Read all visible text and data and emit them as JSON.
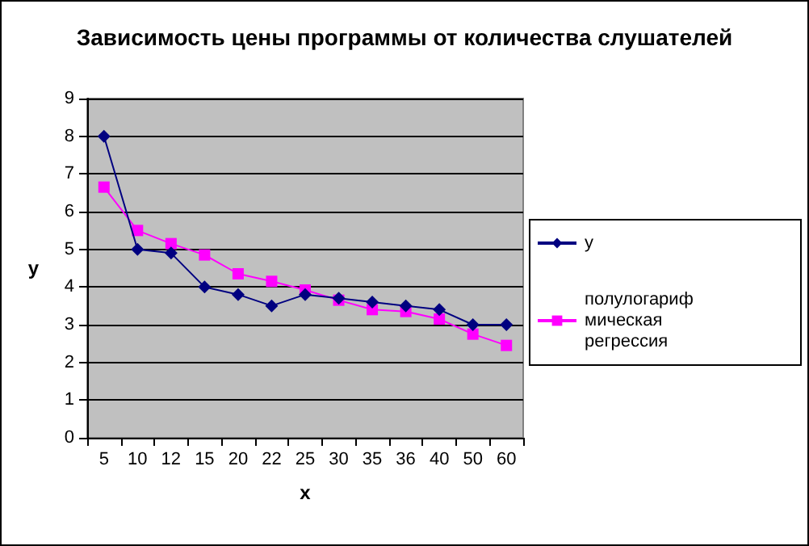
{
  "chart_data": {
    "type": "line",
    "title": "Зависимость цены программы от количества слушателей",
    "xlabel": "x",
    "ylabel": "у",
    "categories": [
      "5",
      "10",
      "12",
      "15",
      "20",
      "22",
      "25",
      "30",
      "35",
      "36",
      "40",
      "50",
      "60"
    ],
    "series": [
      {
        "name": "у",
        "color": "#000080",
        "marker": "diamond",
        "values": [
          8,
          5,
          4.9,
          4,
          3.8,
          3.5,
          3.8,
          3.7,
          3.6,
          3.5,
          3.4,
          3,
          3
        ]
      },
      {
        "name": "полулогарифмическая регрессия",
        "color": "#ff00ff",
        "marker": "square",
        "values": [
          6.65,
          5.5,
          5.15,
          4.85,
          4.35,
          4.15,
          3.92,
          3.65,
          3.4,
          3.35,
          3.15,
          2.75,
          2.45
        ]
      }
    ],
    "ylim": [
      0,
      9
    ],
    "yticks": [
      0,
      1,
      2,
      3,
      4,
      5,
      6,
      7,
      8,
      9
    ],
    "grid": "y",
    "legend": "right"
  }
}
